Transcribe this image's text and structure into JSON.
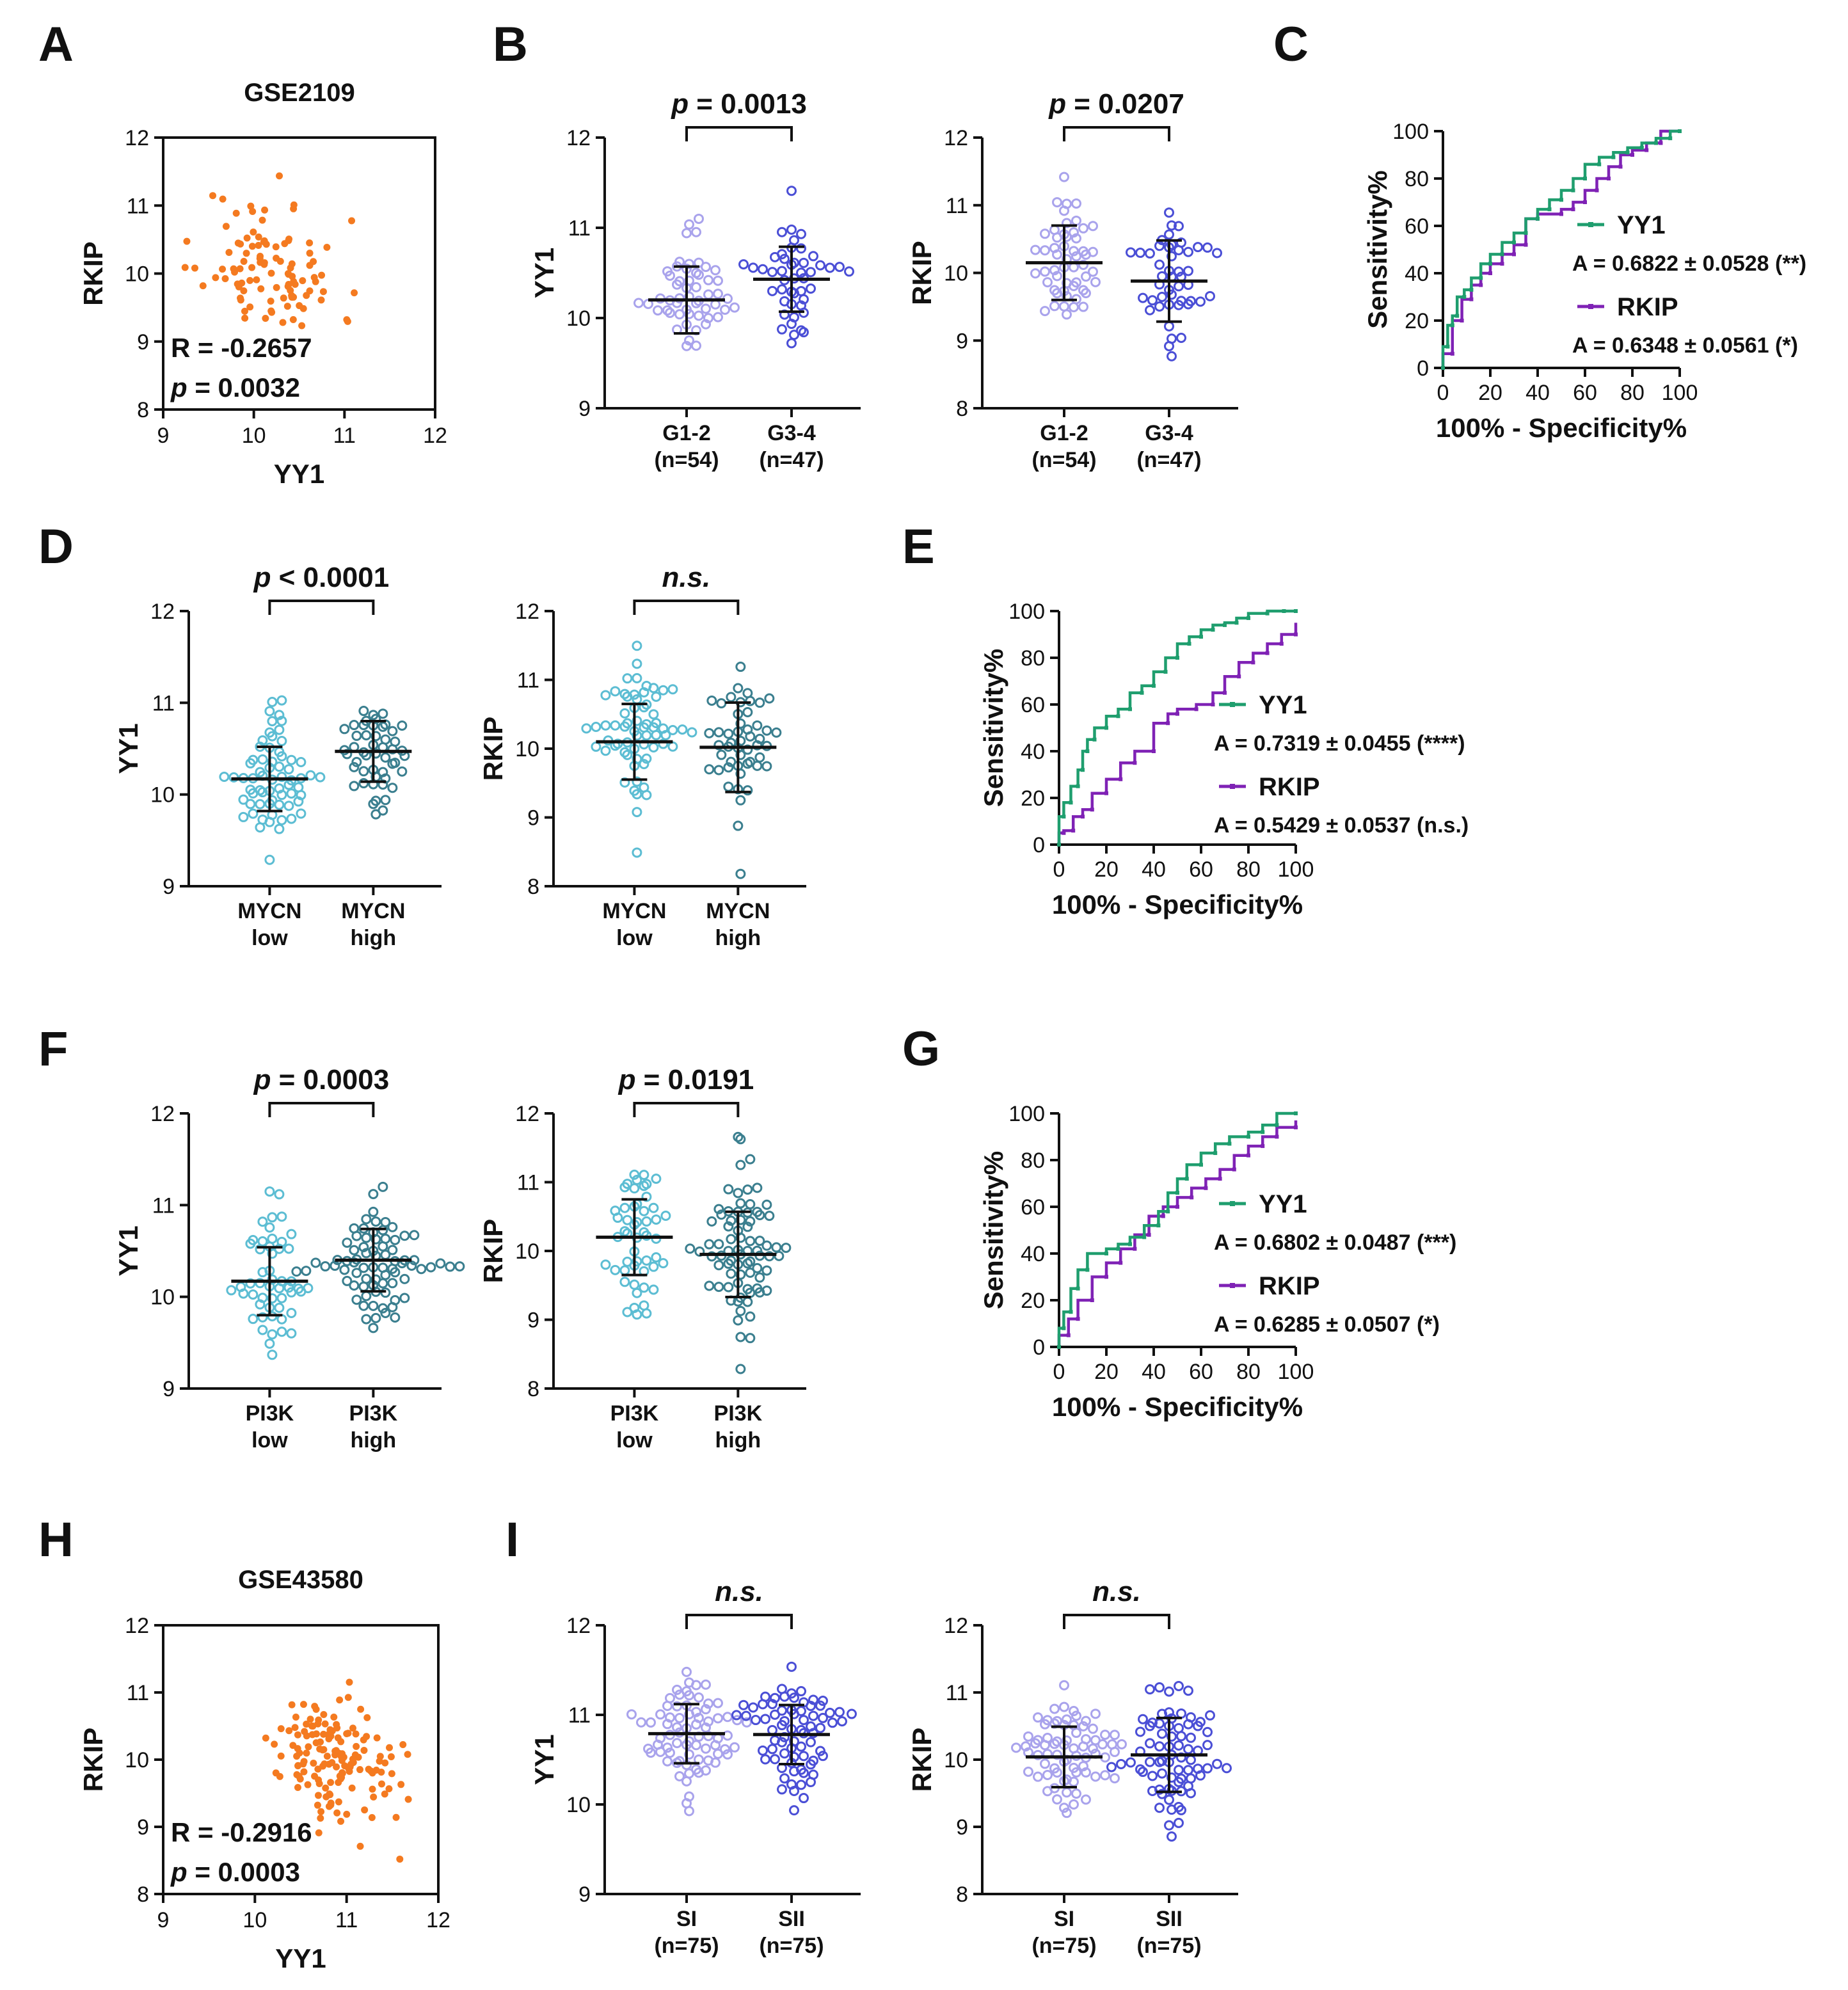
{
  "chart_data": [
    {
      "id": "A",
      "type": "scatter",
      "panel_label": "A",
      "title": "GSE2109",
      "xlabel": "YY1",
      "ylabel": "RKIP",
      "xlim": [
        9,
        12
      ],
      "ylim": [
        8,
        12
      ],
      "xticks": [
        "9",
        "10",
        "11",
        "12"
      ],
      "yticks": [
        "8",
        "9",
        "10",
        "11",
        "12"
      ],
      "annotation": {
        "r_text": "R = -0.2657",
        "p_prefix": "p",
        "p_text": " = 0.0032"
      },
      "color": "#f47a20",
      "n_points": 101,
      "point_generation": {
        "seed": 11,
        "x_mean": 10.2,
        "x_sd": 0.38,
        "y_mean": 10.1,
        "y_sd": 0.52,
        "r": -0.2657
      }
    },
    {
      "id": "B1",
      "type": "dot_plot",
      "panel_label": "B",
      "ylabel": "YY1",
      "ylim": [
        9,
        12
      ],
      "yticks": [
        "9",
        "10",
        "11",
        "12"
      ],
      "p_prefix": "p",
      "p_text": " = 0.0013",
      "groups": [
        {
          "line1": "G1-2",
          "line2": "(n=54)",
          "n": 54,
          "mean": 10.2,
          "sd": 0.37,
          "color": "#a9a3ec"
        },
        {
          "line1": "G3-4",
          "line2": "(n=47)",
          "n": 47,
          "mean": 10.43,
          "sd": 0.36,
          "color": "#4b4fd6"
        }
      ]
    },
    {
      "id": "B2",
      "type": "dot_plot",
      "ylabel": "RKIP",
      "ylim": [
        8,
        12
      ],
      "yticks": [
        "8",
        "9",
        "10",
        "11",
        "12"
      ],
      "p_prefix": "p",
      "p_text": " = 0.0207",
      "groups": [
        {
          "line1": "G1-2",
          "line2": "(n=54)",
          "n": 54,
          "mean": 10.15,
          "sd": 0.55,
          "color": "#a9a3ec"
        },
        {
          "line1": "G3-4",
          "line2": "(n=47)",
          "n": 47,
          "mean": 9.88,
          "sd": 0.6,
          "color": "#4b4fd6"
        }
      ]
    },
    {
      "id": "C",
      "type": "line",
      "panel_label": "C",
      "xlabel": "100% - Specificity%",
      "ylabel": "Sensitivity%",
      "xlim": [
        0,
        100
      ],
      "ylim": [
        0,
        100
      ],
      "xticks": [
        "0",
        "20",
        "40",
        "60",
        "80",
        "100"
      ],
      "yticks": [
        "0",
        "20",
        "40",
        "60",
        "80",
        "100"
      ],
      "series": [
        {
          "name": "YY1",
          "area_text": "A = 0.6822 ± 0.0528 (**)",
          "color": "#1f9e6e",
          "x": [
            0,
            0,
            2,
            2,
            4,
            4,
            6,
            6,
            9,
            9,
            12,
            12,
            16,
            16,
            20,
            20,
            25,
            25,
            30,
            30,
            35,
            35,
            40,
            40,
            45,
            45,
            50,
            50,
            55,
            55,
            60,
            60,
            66,
            66,
            72,
            72,
            78,
            78,
            84,
            84,
            90,
            90,
            96,
            96,
            100
          ],
          "y": [
            0,
            9,
            9,
            18,
            18,
            22,
            22,
            30,
            30,
            33,
            33,
            38,
            38,
            44,
            44,
            48,
            48,
            53,
            53,
            57,
            57,
            63,
            63,
            67,
            67,
            71,
            71,
            75,
            75,
            80,
            80,
            86,
            86,
            89,
            89,
            91,
            91,
            93,
            93,
            95,
            95,
            97,
            97,
            100,
            100
          ]
        },
        {
          "name": "RKIP",
          "area_text": "A = 0.6348 ± 0.0561 (*)",
          "color": "#7f22b5",
          "x": [
            0,
            0,
            4,
            4,
            8,
            8,
            12,
            12,
            16,
            16,
            20,
            20,
            25,
            25,
            30,
            30,
            35,
            35,
            40,
            40,
            50,
            50,
            55,
            55,
            60,
            60,
            65,
            65,
            70,
            70,
            75,
            75,
            80,
            80,
            86,
            86,
            92,
            92,
            100
          ],
          "y": [
            0,
            6,
            6,
            20,
            20,
            29,
            29,
            35,
            35,
            40,
            40,
            44,
            44,
            48,
            48,
            52,
            52,
            63,
            63,
            65,
            65,
            67,
            67,
            70,
            70,
            75,
            75,
            80,
            80,
            85,
            85,
            90,
            90,
            92,
            92,
            95,
            95,
            100,
            100
          ]
        }
      ]
    },
    {
      "id": "D1",
      "type": "dot_plot",
      "panel_label": "D",
      "ylabel": "YY1",
      "ylim": [
        9,
        12
      ],
      "yticks": [
        "9",
        "10",
        "11",
        "12"
      ],
      "p_prefix": "p",
      "p_text": " < 0.0001",
      "groups": [
        {
          "line1": "MYCN",
          "line2": "low",
          "n": 66,
          "mean": 10.17,
          "sd": 0.35,
          "color": "#5cbdd3"
        },
        {
          "line1": "MYCN",
          "line2": "high",
          "n": 50,
          "mean": 10.47,
          "sd": 0.33,
          "color": "#3b7f8f"
        }
      ]
    },
    {
      "id": "D2",
      "type": "dot_plot",
      "ylabel": "RKIP",
      "ylim": [
        8,
        12
      ],
      "yticks": [
        "8",
        "9",
        "10",
        "11",
        "12"
      ],
      "p_prefix": "",
      "p_text": "n.s.",
      "italic_p": true,
      "groups": [
        {
          "line1": "MYCN",
          "line2": "low",
          "n": 66,
          "mean": 10.1,
          "sd": 0.55,
          "color": "#5cbdd3"
        },
        {
          "line1": "MYCN",
          "line2": "high",
          "n": 50,
          "mean": 10.02,
          "sd": 0.65,
          "color": "#3b7f8f"
        }
      ]
    },
    {
      "id": "E",
      "type": "line",
      "panel_label": "E",
      "xlabel": "100% - Specificity%",
      "ylabel": "Sensitivity%",
      "xlim": [
        0,
        100
      ],
      "ylim": [
        0,
        100
      ],
      "xticks": [
        "0",
        "20",
        "40",
        "60",
        "80",
        "100"
      ],
      "yticks": [
        "0",
        "20",
        "40",
        "60",
        "80",
        "100"
      ],
      "series": [
        {
          "name": "YY1",
          "area_text": "A = 0.7319 ± 0.0455 (****)",
          "color": "#1f9e6e",
          "x": [
            0,
            0,
            2,
            2,
            5,
            5,
            8,
            8,
            10,
            10,
            12,
            12,
            15,
            15,
            20,
            20,
            25,
            25,
            30,
            30,
            35,
            35,
            40,
            40,
            45,
            45,
            50,
            50,
            55,
            55,
            60,
            60,
            65,
            65,
            70,
            70,
            75,
            75,
            80,
            80,
            88,
            88,
            95,
            95,
            100
          ],
          "y": [
            0,
            12,
            12,
            18,
            18,
            25,
            25,
            32,
            32,
            40,
            40,
            45,
            45,
            50,
            50,
            55,
            55,
            58,
            58,
            65,
            65,
            68,
            68,
            74,
            74,
            80,
            80,
            86,
            86,
            89,
            89,
            92,
            92,
            94,
            94,
            95,
            95,
            97,
            97,
            99,
            99,
            100,
            100,
            100,
            100
          ]
        },
        {
          "name": "RKIP",
          "area_text": "A = 0.5429 ± 0.0537 (n.s.)",
          "color": "#7f22b5",
          "x": [
            0,
            0,
            2,
            2,
            6,
            6,
            10,
            10,
            14,
            14,
            20,
            20,
            26,
            26,
            32,
            32,
            40,
            40,
            46,
            46,
            50,
            50,
            58,
            58,
            65,
            65,
            70,
            70,
            76,
            76,
            82,
            82,
            88,
            88,
            94,
            94,
            100,
            100
          ],
          "y": [
            0,
            5,
            5,
            6,
            6,
            12,
            12,
            15,
            15,
            22,
            22,
            28,
            28,
            35,
            35,
            40,
            40,
            52,
            52,
            56,
            56,
            58,
            58,
            60,
            60,
            65,
            65,
            72,
            72,
            78,
            78,
            82,
            82,
            86,
            86,
            90,
            90,
            95
          ]
        }
      ]
    },
    {
      "id": "F1",
      "type": "dot_plot",
      "panel_label": "F",
      "ylabel": "YY1",
      "ylim": [
        9,
        12
      ],
      "yticks": [
        "9",
        "10",
        "11",
        "12"
      ],
      "p_prefix": "p",
      "p_text": " = 0.0003",
      "groups": [
        {
          "line1": "PI3K",
          "line2": "low",
          "n": 52,
          "mean": 10.17,
          "sd": 0.37,
          "color": "#5cbdd3"
        },
        {
          "line1": "PI3K",
          "line2": "high",
          "n": 78,
          "mean": 10.4,
          "sd": 0.34,
          "color": "#3b7f8f"
        }
      ]
    },
    {
      "id": "F2",
      "type": "dot_plot",
      "ylabel": "RKIP",
      "ylim": [
        8,
        12
      ],
      "yticks": [
        "8",
        "9",
        "10",
        "11",
        "12"
      ],
      "p_prefix": "p",
      "p_text": " = 0.0191",
      "groups": [
        {
          "line1": "PI3K",
          "line2": "low",
          "n": 52,
          "mean": 10.2,
          "sd": 0.55,
          "color": "#5cbdd3"
        },
        {
          "line1": "PI3K",
          "line2": "high",
          "n": 78,
          "mean": 9.95,
          "sd": 0.62,
          "color": "#3b7f8f"
        }
      ]
    },
    {
      "id": "G",
      "type": "line",
      "panel_label": "G",
      "xlabel": "100% - Specificity%",
      "ylabel": "Sensitivity%",
      "xlim": [
        0,
        100
      ],
      "ylim": [
        0,
        100
      ],
      "xticks": [
        "0",
        "20",
        "40",
        "60",
        "80",
        "100"
      ],
      "yticks": [
        "0",
        "20",
        "40",
        "60",
        "80",
        "100"
      ],
      "series": [
        {
          "name": "YY1",
          "area_text": "A = 0.6802 ± 0.0487 (***)",
          "color": "#1f9e6e",
          "x": [
            0,
            0,
            2,
            2,
            5,
            5,
            8,
            8,
            12,
            12,
            20,
            20,
            25,
            25,
            30,
            30,
            36,
            36,
            42,
            42,
            46,
            46,
            50,
            50,
            54,
            54,
            60,
            60,
            66,
            66,
            72,
            72,
            80,
            80,
            86,
            86,
            92,
            92,
            100
          ],
          "y": [
            0,
            8,
            8,
            15,
            15,
            25,
            25,
            33,
            33,
            40,
            40,
            42,
            42,
            44,
            44,
            47,
            47,
            52,
            52,
            58,
            58,
            66,
            66,
            72,
            72,
            78,
            78,
            83,
            83,
            87,
            87,
            90,
            90,
            92,
            92,
            95,
            95,
            100,
            100
          ]
        },
        {
          "name": "RKIP",
          "area_text": "A = 0.6285 ± 0.0507 (*)",
          "color": "#7f22b5",
          "x": [
            0,
            0,
            4,
            4,
            8,
            8,
            14,
            14,
            20,
            20,
            26,
            26,
            32,
            32,
            38,
            38,
            44,
            44,
            50,
            50,
            56,
            56,
            62,
            62,
            68,
            68,
            74,
            74,
            80,
            80,
            86,
            86,
            92,
            92,
            100,
            100
          ],
          "y": [
            0,
            5,
            5,
            12,
            12,
            20,
            20,
            30,
            30,
            36,
            36,
            42,
            42,
            48,
            48,
            56,
            56,
            60,
            60,
            64,
            64,
            68,
            68,
            72,
            72,
            76,
            76,
            82,
            82,
            86,
            86,
            90,
            90,
            94,
            94,
            97
          ]
        }
      ]
    },
    {
      "id": "H",
      "type": "scatter",
      "panel_label": "H",
      "title": "GSE43580",
      "xlabel": "YY1",
      "ylabel": "RKIP",
      "xlim": [
        9,
        12
      ],
      "ylim": [
        8,
        12
      ],
      "xticks": [
        "9",
        "10",
        "11",
        "12"
      ],
      "yticks": [
        "8",
        "9",
        "10",
        "11",
        "12"
      ],
      "annotation": {
        "r_text": "R = -0.2916",
        "p_prefix": "p",
        "p_text": " = 0.0003"
      },
      "color": "#f47a20",
      "n_points": 150,
      "point_generation": {
        "seed": 29,
        "x_mean": 10.8,
        "x_sd": 0.33,
        "y_mean": 10.05,
        "y_sd": 0.48,
        "r": -0.2916
      }
    },
    {
      "id": "I1",
      "type": "dot_plot",
      "panel_label": "I",
      "ylabel": "YY1",
      "ylim": [
        9,
        12
      ],
      "yticks": [
        "9",
        "10",
        "11",
        "12"
      ],
      "p_prefix": "",
      "p_text": "n.s.",
      "italic_p": true,
      "groups": [
        {
          "line1": "SI",
          "line2": "(n=75)",
          "n": 75,
          "mean": 10.79,
          "sd": 0.33,
          "color": "#a9a3ec"
        },
        {
          "line1": "SII",
          "line2": "(n=75)",
          "n": 75,
          "mean": 10.78,
          "sd": 0.33,
          "color": "#4b4fd6"
        }
      ]
    },
    {
      "id": "I2",
      "type": "dot_plot",
      "ylabel": "RKIP",
      "ylim": [
        8,
        12
      ],
      "yticks": [
        "8",
        "9",
        "10",
        "11",
        "12"
      ],
      "p_prefix": "",
      "p_text": "n.s.",
      "italic_p": true,
      "groups": [
        {
          "line1": "SI",
          "line2": "(n=75)",
          "n": 75,
          "mean": 10.04,
          "sd": 0.45,
          "color": "#a9a3ec"
        },
        {
          "line1": "SII",
          "line2": "(n=75)",
          "n": 75,
          "mean": 10.07,
          "sd": 0.55,
          "color": "#4b4fd6"
        }
      ]
    }
  ]
}
